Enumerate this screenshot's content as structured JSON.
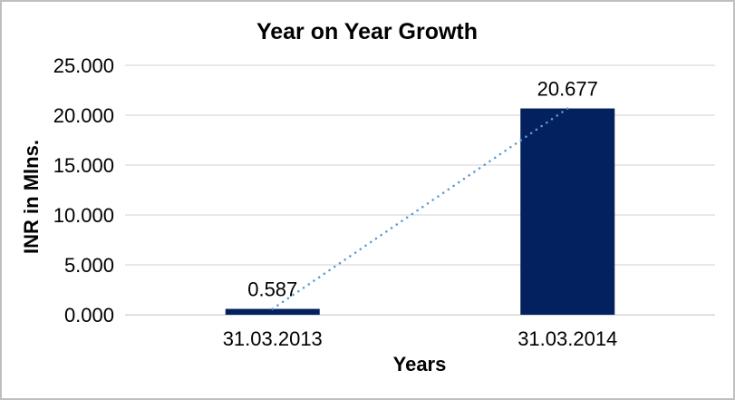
{
  "frame": {
    "background": "#FFFFFF",
    "border_color": "#BFBFBF"
  },
  "chart_data": {
    "type": "bar",
    "title": "Year on Year Growth",
    "categories": [
      "31.03.2013",
      "31.03.2014"
    ],
    "values": [
      0.587,
      20.677
    ],
    "data_labels": [
      "0.587",
      "20.677"
    ],
    "xlabel": "Years",
    "ylabel": "INR in Mlns.",
    "ylim": [
      0,
      25
    ],
    "yticks": [
      0,
      5,
      10,
      15,
      20,
      25
    ],
    "ytick_labels": [
      "0.000",
      "5.000",
      "10.000",
      "15.000",
      "20.000",
      "25.000"
    ],
    "grid": true,
    "legend": "none",
    "bar_color": "#03215E",
    "gridline_color": "#D9D9D9",
    "axis_line_color": "#D9D9D9",
    "text_color": "#000000",
    "trendline": {
      "type": "linear",
      "style": "dotted",
      "color": "#5B9BD5"
    }
  }
}
